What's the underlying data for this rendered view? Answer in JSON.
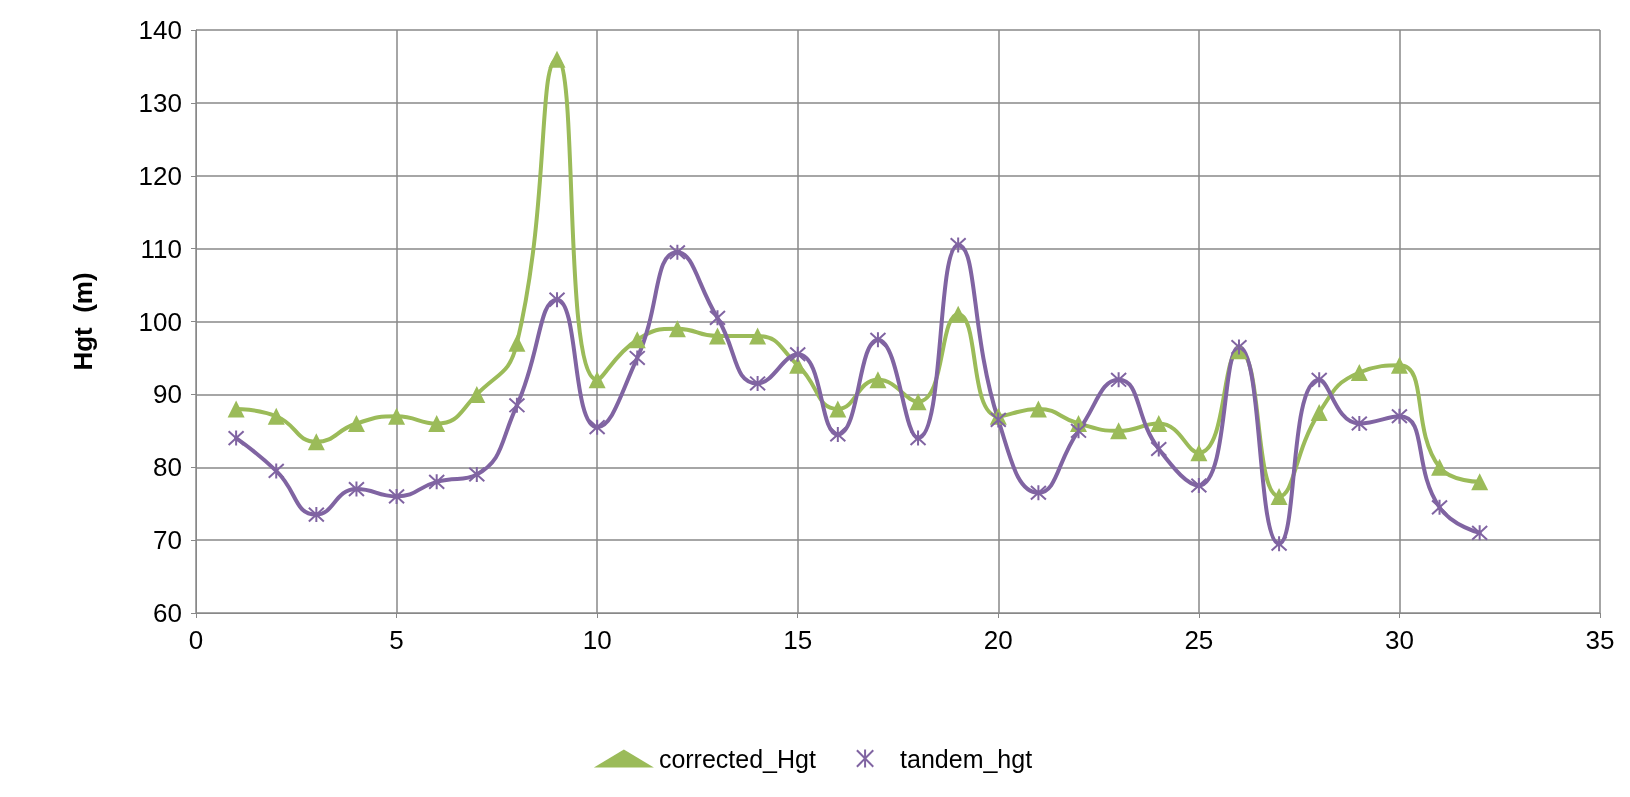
{
  "chart_data": {
    "type": "line",
    "ylabel": "Hgt  (m)",
    "xlim": [
      0,
      35
    ],
    "xticks": [
      0,
      5,
      10,
      15,
      20,
      25,
      30,
      35
    ],
    "ylim": [
      60,
      140
    ],
    "yticks": [
      60,
      70,
      80,
      90,
      100,
      110,
      120,
      130,
      140
    ],
    "grid": true,
    "legend": "bottom",
    "line_style": "solid",
    "x": [
      1,
      2,
      3,
      4,
      5,
      6,
      7,
      8,
      9,
      10,
      11,
      12,
      13,
      14,
      15,
      16,
      17,
      18,
      19,
      20,
      21,
      22,
      23,
      24,
      25,
      26,
      27,
      28,
      29,
      30,
      31,
      32
    ],
    "series": [
      {
        "name": "corrected_Hgt",
        "color": "#9bbb59",
        "marker": "triangle",
        "values": [
          88,
          87,
          83.5,
          86,
          87,
          86,
          90,
          97,
          136,
          92,
          97.5,
          99,
          98,
          98,
          94,
          88,
          92,
          89,
          101,
          87,
          88,
          86,
          85,
          86,
          82,
          96,
          76,
          87.5,
          93,
          94,
          80,
          78
        ]
      },
      {
        "name": "tandem_hgt",
        "color": "#8064a2",
        "marker": "cross",
        "values": [
          84,
          79.5,
          73.5,
          77,
          76,
          78,
          79,
          88.5,
          103,
          85.5,
          95,
          109.5,
          100.5,
          91.5,
          95.5,
          84.5,
          97.5,
          84,
          110.5,
          86.5,
          76.5,
          85,
          92,
          82.5,
          77.5,
          96.5,
          69.5,
          92,
          86,
          87,
          74.5,
          71
        ]
      }
    ]
  }
}
